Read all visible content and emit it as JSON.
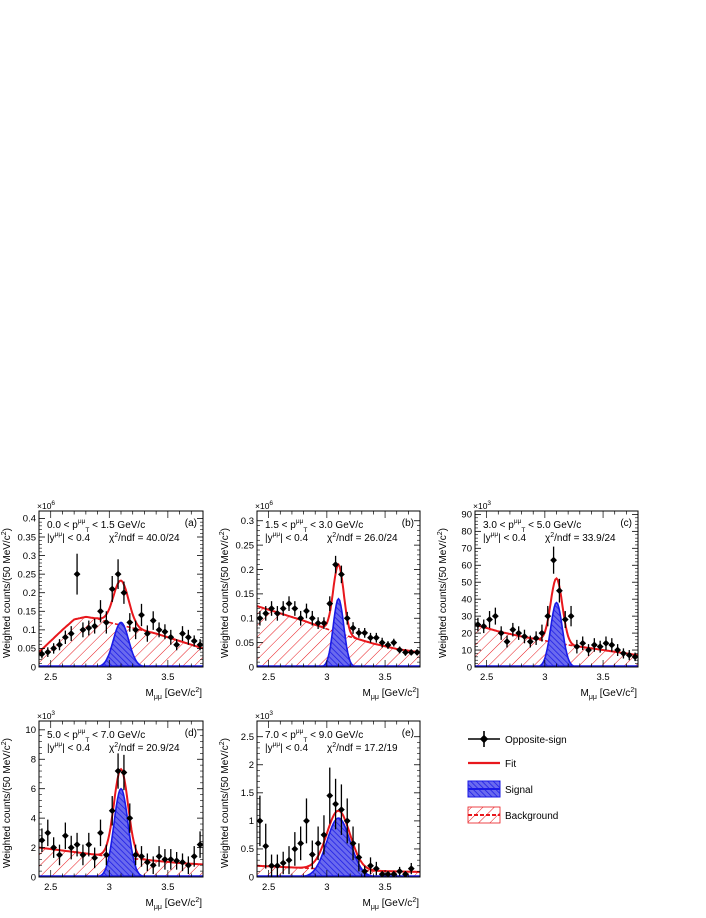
{
  "legend": {
    "items": [
      {
        "key": "data",
        "label": "Opposite-sign"
      },
      {
        "key": "fit",
        "label": "Fit"
      },
      {
        "key": "signal",
        "label": "Signal"
      },
      {
        "key": "background",
        "label": "Background"
      }
    ]
  },
  "colors": {
    "data": "#000000",
    "fit": "#e8171c",
    "signal": "#1a1ae6",
    "signal_fill": "#4a4ae8",
    "background": "#e8171c"
  },
  "chart_data": [
    {
      "type": "line",
      "id": "a",
      "tag": "(a)",
      "exponent": "×10",
      "exponent_power": "6",
      "ylabel": "Weighted counts/(50 MeV/c",
      "ylabel_sup": "2",
      "ylabel_end": ")",
      "xlabel": "M",
      "xlabel_sub": "μμ",
      "xlabel_units": "[GeV/c",
      "xlabel_units_sup": "2",
      "xlabel_units_end": "]",
      "pt_lo": "0.0 < p",
      "pt_hi": " < 1.5 GeV/c",
      "pt_sub": "T",
      "pt_sup": "μμ",
      "y_lo": "|y",
      "y_hi": "| < 0.4",
      "y_sup": "μμ",
      "chi_pre": "χ",
      "chi_sup": "2",
      "chi_post": "/ndf = 40.0/24",
      "xlim": [
        2.4,
        3.8
      ],
      "ylim": [
        0,
        0.42
      ],
      "yticks": [
        0,
        0.05,
        0.1,
        0.15,
        0.2,
        0.25,
        0.3,
        0.35,
        0.4
      ],
      "ytick_labels": [
        "0",
        "0.05",
        "0.1",
        "0.15",
        "0.2",
        "0.25",
        "0.3",
        "0.35",
        "0.4"
      ],
      "xticks": [
        2.5,
        3,
        3.5
      ],
      "xtick_labels": [
        "2.5",
        "3",
        "3.5"
      ],
      "signal": {
        "amp": 0.12,
        "mean": 3.1,
        "sigma": 0.065
      },
      "background": {
        "points": [
          [
            2.4,
            0.04
          ],
          [
            2.5,
            0.07
          ],
          [
            2.6,
            0.1
          ],
          [
            2.7,
            0.128
          ],
          [
            2.8,
            0.135
          ],
          [
            2.9,
            0.13
          ],
          [
            3.0,
            0.12
          ],
          [
            3.2,
            0.105
          ],
          [
            3.4,
            0.09
          ],
          [
            3.6,
            0.07
          ],
          [
            3.8,
            0.05
          ]
        ]
      },
      "data": {
        "x": [
          2.425,
          2.475,
          2.525,
          2.575,
          2.625,
          2.675,
          2.725,
          2.775,
          2.825,
          2.875,
          2.925,
          2.975,
          3.025,
          3.075,
          3.125,
          3.175,
          3.225,
          3.275,
          3.325,
          3.375,
          3.425,
          3.475,
          3.525,
          3.575,
          3.625,
          3.675,
          3.725,
          3.775
        ],
        "y": [
          0.035,
          0.04,
          0.05,
          0.06,
          0.08,
          0.09,
          0.25,
          0.1,
          0.105,
          0.11,
          0.15,
          0.12,
          0.21,
          0.25,
          0.2,
          0.12,
          0.1,
          0.14,
          0.09,
          0.125,
          0.1,
          0.095,
          0.08,
          0.06,
          0.09,
          0.08,
          0.07,
          0.06
        ],
        "err": [
          0.012,
          0.013,
          0.014,
          0.015,
          0.018,
          0.02,
          0.055,
          0.02,
          0.02,
          0.02,
          0.03,
          0.03,
          0.035,
          0.04,
          0.03,
          0.025,
          0.025,
          0.03,
          0.022,
          0.025,
          0.02,
          0.02,
          0.02,
          0.015,
          0.02,
          0.02,
          0.015,
          0.015
        ]
      }
    },
    {
      "type": "line",
      "id": "b",
      "tag": "(b)",
      "exponent": "×10",
      "exponent_power": "6",
      "ylabel": "Weighted counts/(50 MeV/c",
      "ylabel_sup": "2",
      "ylabel_end": ")",
      "xlabel": "M",
      "xlabel_sub": "μμ",
      "xlabel_units": "[GeV/c",
      "xlabel_units_sup": "2",
      "xlabel_units_end": "]",
      "pt_lo": "1.5 < p",
      "pt_hi": " < 3.0 GeV/c",
      "pt_sub": "T",
      "pt_sup": "μμ",
      "y_lo": "|y",
      "y_hi": "| < 0.4",
      "y_sup": "μμ",
      "chi_pre": "χ",
      "chi_sup": "2",
      "chi_post": "/ndf = 26.0/24",
      "xlim": [
        2.4,
        3.8
      ],
      "ylim": [
        0,
        0.32
      ],
      "yticks": [
        0,
        0.05,
        0.1,
        0.15,
        0.2,
        0.25,
        0.3
      ],
      "ytick_labels": [
        "0",
        "0.05",
        "0.1",
        "0.15",
        "0.2",
        "0.25",
        "0.3"
      ],
      "xticks": [
        2.5,
        3,
        3.5
      ],
      "xtick_labels": [
        "2.5",
        "3",
        "3.5"
      ],
      "signal": {
        "amp": 0.14,
        "mean": 3.1,
        "sigma": 0.045
      },
      "background": {
        "points": [
          [
            2.4,
            0.125
          ],
          [
            2.6,
            0.11
          ],
          [
            2.8,
            0.095
          ],
          [
            3.0,
            0.078
          ],
          [
            3.2,
            0.062
          ],
          [
            3.4,
            0.048
          ],
          [
            3.6,
            0.037
          ],
          [
            3.8,
            0.03
          ]
        ]
      },
      "data": {
        "x": [
          2.425,
          2.475,
          2.525,
          2.575,
          2.625,
          2.675,
          2.725,
          2.775,
          2.825,
          2.875,
          2.925,
          2.975,
          3.025,
          3.075,
          3.125,
          3.175,
          3.225,
          3.275,
          3.325,
          3.375,
          3.425,
          3.475,
          3.525,
          3.575,
          3.625,
          3.675,
          3.725,
          3.775
        ],
        "y": [
          0.1,
          0.11,
          0.12,
          0.11,
          0.12,
          0.13,
          0.12,
          0.1,
          0.115,
          0.1,
          0.09,
          0.09,
          0.13,
          0.21,
          0.19,
          0.1,
          0.08,
          0.07,
          0.07,
          0.06,
          0.06,
          0.05,
          0.045,
          0.05,
          0.035,
          0.03,
          0.03,
          0.03
        ],
        "err": [
          0.015,
          0.015,
          0.015,
          0.015,
          0.015,
          0.015,
          0.015,
          0.015,
          0.015,
          0.015,
          0.012,
          0.012,
          0.015,
          0.018,
          0.018,
          0.013,
          0.012,
          0.01,
          0.01,
          0.01,
          0.01,
          0.01,
          0.008,
          0.008,
          0.007,
          0.007,
          0.006,
          0.006
        ]
      }
    },
    {
      "type": "line",
      "id": "c",
      "tag": "(c)",
      "exponent": "×10",
      "exponent_power": "3",
      "ylabel": "Weighted counts/(50 MeV/c",
      "ylabel_sup": "2",
      "ylabel_end": ")",
      "xlabel": "M",
      "xlabel_sub": "μμ",
      "xlabel_units": "[GeV/c",
      "xlabel_units_sup": "2",
      "xlabel_units_end": "]",
      "pt_lo": "3.0 < p",
      "pt_hi": " < 5.0 GeV/c",
      "pt_sub": "T",
      "pt_sup": "μμ",
      "y_lo": "|y",
      "y_hi": "| < 0.4",
      "y_sup": "μμ",
      "chi_pre": "χ",
      "chi_sup": "2",
      "chi_post": "/ndf = 33.9/24",
      "xlim": [
        2.4,
        3.8
      ],
      "ylim": [
        0,
        92
      ],
      "yticks": [
        0,
        10,
        20,
        30,
        40,
        50,
        60,
        70,
        80,
        90
      ],
      "ytick_labels": [
        "0",
        "10",
        "20",
        "30",
        "40",
        "50",
        "60",
        "70",
        "80",
        "90"
      ],
      "xticks": [
        2.5,
        3,
        3.5
      ],
      "xtick_labels": [
        "2.5",
        "3",
        "3.5"
      ],
      "signal": {
        "amp": 38,
        "mean": 3.1,
        "sigma": 0.05
      },
      "background": {
        "points": [
          [
            2.4,
            25
          ],
          [
            2.6,
            21
          ],
          [
            2.8,
            18
          ],
          [
            3.0,
            15.5
          ],
          [
            3.2,
            13
          ],
          [
            3.4,
            11
          ],
          [
            3.6,
            9
          ],
          [
            3.8,
            7
          ]
        ]
      },
      "data": {
        "x": [
          2.425,
          2.475,
          2.525,
          2.575,
          2.625,
          2.675,
          2.725,
          2.775,
          2.825,
          2.875,
          2.925,
          2.975,
          3.025,
          3.075,
          3.125,
          3.175,
          3.225,
          3.275,
          3.325,
          3.375,
          3.425,
          3.475,
          3.525,
          3.575,
          3.625,
          3.675,
          3.725,
          3.775
        ],
        "y": [
          25,
          24,
          28,
          30,
          20,
          15,
          22,
          20,
          18,
          15,
          17,
          20,
          30,
          63,
          45,
          28,
          30,
          12,
          14,
          10,
          13,
          12,
          14,
          13,
          10,
          8,
          7,
          6
        ],
        "err": [
          4,
          4,
          5,
          5,
          4,
          3.5,
          4,
          4,
          4,
          3.5,
          4,
          5,
          6,
          8,
          7,
          5,
          6,
          4,
          4,
          3.5,
          4,
          3.5,
          4,
          4,
          3.5,
          3,
          3,
          2.5
        ]
      }
    },
    {
      "type": "line",
      "id": "d",
      "tag": "(d)",
      "exponent": "×10",
      "exponent_power": "3",
      "ylabel": "Weighted counts/(50 MeV/c",
      "ylabel_sup": "2",
      "ylabel_end": ")",
      "xlabel": "M",
      "xlabel_sub": "μμ",
      "xlabel_units": "[GeV/c",
      "xlabel_units_sup": "2",
      "xlabel_units_end": "]",
      "pt_lo": "5.0 < p",
      "pt_hi": " < 7.0 GeV/c",
      "pt_sub": "T",
      "pt_sup": "μμ",
      "y_lo": "|y",
      "y_hi": "| < 0.4",
      "y_sup": "μμ",
      "chi_pre": "χ",
      "chi_sup": "2",
      "chi_post": "/ndf = 20.9/24",
      "xlim": [
        2.4,
        3.8
      ],
      "ylim": [
        0,
        10.6
      ],
      "yticks": [
        0,
        2,
        4,
        6,
        8,
        10
      ],
      "ytick_labels": [
        "0",
        "2",
        "4",
        "6",
        "8",
        "10"
      ],
      "xticks": [
        2.5,
        3,
        3.5
      ],
      "xtick_labels": [
        "2.5",
        "3",
        "3.5"
      ],
      "signal": {
        "amp": 6.0,
        "mean": 3.1,
        "sigma": 0.06
      },
      "background": {
        "points": [
          [
            2.4,
            2.0
          ],
          [
            2.6,
            1.8
          ],
          [
            2.8,
            1.6
          ],
          [
            3.0,
            1.4
          ],
          [
            3.2,
            1.25
          ],
          [
            3.4,
            1.1
          ],
          [
            3.6,
            0.95
          ],
          [
            3.8,
            0.85
          ]
        ]
      },
      "data": {
        "x": [
          2.425,
          2.475,
          2.525,
          2.575,
          2.625,
          2.675,
          2.725,
          2.775,
          2.825,
          2.875,
          2.925,
          2.975,
          3.025,
          3.075,
          3.125,
          3.175,
          3.225,
          3.275,
          3.325,
          3.375,
          3.425,
          3.475,
          3.525,
          3.575,
          3.625,
          3.675,
          3.725,
          3.775
        ],
        "y": [
          2.5,
          3.0,
          2.0,
          1.5,
          2.8,
          2.0,
          2.2,
          1.5,
          2.2,
          1.3,
          3.0,
          1.5,
          4.5,
          7.2,
          7.1,
          4.0,
          1.5,
          1.4,
          1.0,
          0.8,
          1.4,
          1.2,
          1.2,
          1.1,
          1.0,
          0.8,
          1.4,
          2.2
        ],
        "err": [
          0.8,
          0.9,
          0.7,
          0.7,
          0.9,
          0.8,
          0.8,
          0.7,
          0.8,
          0.7,
          0.9,
          0.7,
          1.0,
          1.2,
          1.2,
          1.0,
          0.7,
          0.7,
          0.6,
          0.6,
          0.7,
          0.7,
          0.7,
          0.6,
          0.6,
          0.6,
          0.7,
          0.9
        ]
      }
    },
    {
      "type": "line",
      "id": "e",
      "tag": "(e)",
      "exponent": "×10",
      "exponent_power": "3",
      "ylabel": "Weighted counts/(50 MeV/c",
      "ylabel_sup": "2",
      "ylabel_end": ")",
      "xlabel": "M",
      "xlabel_sub": "μμ",
      "xlabel_units": "[GeV/c",
      "xlabel_units_sup": "2",
      "xlabel_units_end": "]",
      "pt_lo": "7.0 < p",
      "pt_hi": " < 9.0 GeV/c",
      "pt_sub": "T",
      "pt_sup": "μμ",
      "y_lo": "|y",
      "y_hi": "| < 0.4",
      "y_sup": "μμ",
      "chi_pre": "χ",
      "chi_sup": "2",
      "chi_post": "/ndf = 17.2/19",
      "xlim": [
        2.4,
        3.8
      ],
      "ylim": [
        0,
        2.78
      ],
      "yticks": [
        0,
        0.5,
        1,
        1.5,
        2,
        2.5
      ],
      "ytick_labels": [
        "0",
        "0.5",
        "1",
        "1.5",
        "2",
        "2.5"
      ],
      "xticks": [
        2.5,
        3,
        3.5
      ],
      "xtick_labels": [
        "2.5",
        "3",
        "3.5"
      ],
      "signal": {
        "amp": 1.05,
        "mean": 3.1,
        "sigma": 0.1
      },
      "background": {
        "points": [
          [
            2.4,
            0.2
          ],
          [
            2.6,
            0.18
          ],
          [
            2.8,
            0.16
          ],
          [
            3.0,
            0.14
          ],
          [
            3.2,
            0.12
          ],
          [
            3.4,
            0.11
          ],
          [
            3.6,
            0.1
          ],
          [
            3.8,
            0.09
          ]
        ]
      },
      "data": {
        "x": [
          2.425,
          2.475,
          2.525,
          2.575,
          2.625,
          2.675,
          2.725,
          2.775,
          2.825,
          2.875,
          2.925,
          2.975,
          3.025,
          3.075,
          3.125,
          3.175,
          3.225,
          3.275,
          3.325,
          3.375,
          3.425,
          3.475,
          3.525,
          3.575,
          3.625,
          3.675,
          3.725
        ],
        "y": [
          1.0,
          0.55,
          0.2,
          0.2,
          0.25,
          0.3,
          0.5,
          0.6,
          1.0,
          0.4,
          0.6,
          0.75,
          1.45,
          1.3,
          1.2,
          1.0,
          0.6,
          0.35,
          0.1,
          0.2,
          0.15,
          0.05,
          0.05,
          0.05,
          0.1,
          0.05,
          0.15
        ],
        "err": [
          0.45,
          0.4,
          0.2,
          0.2,
          0.2,
          0.25,
          0.3,
          0.3,
          0.4,
          0.25,
          0.3,
          0.35,
          0.5,
          0.45,
          0.45,
          0.4,
          0.3,
          0.25,
          0.1,
          0.15,
          0.12,
          0.05,
          0.05,
          0.05,
          0.08,
          0.05,
          0.1
        ]
      }
    }
  ]
}
